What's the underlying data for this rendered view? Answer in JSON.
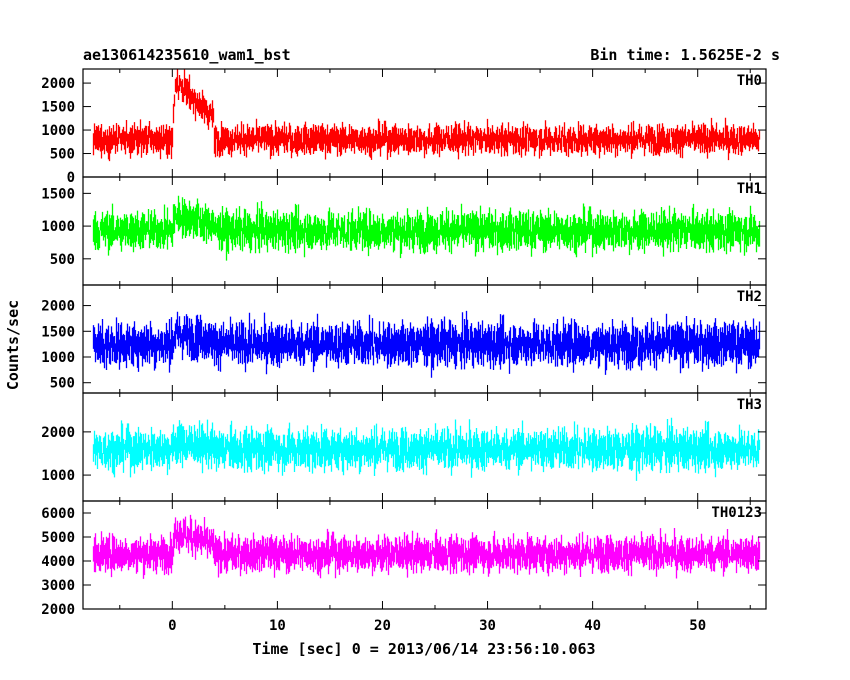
{
  "header": {
    "title": "ae130614235610_wam1_bst",
    "bin_time": "Bin time: 1.5625E-2 s"
  },
  "chart_data": {
    "type": "line",
    "xlabel": "Time [sec] 0 = 2013/06/14 23:56:10.063",
    "ylabel": "Counts/sec",
    "xlim": [
      -8.5,
      56.5
    ],
    "x_range": [
      -7.5,
      55.9
    ],
    "x_ticks": [
      0,
      10,
      20,
      30,
      40,
      50
    ],
    "grid": false,
    "panels": [
      {
        "name": "TH0",
        "color": "#ff0000",
        "ylim": [
          0,
          2300
        ],
        "yticks": [
          0,
          500,
          1000,
          1500,
          2000
        ],
        "base": 800,
        "spread": 300,
        "burst_peak": 1300,
        "burst_x": [
          0,
          4
        ]
      },
      {
        "name": "TH1",
        "color": "#00ff00",
        "ylim": [
          100,
          1750
        ],
        "yticks": [
          500,
          1000,
          1500
        ],
        "base": 930,
        "spread": 280,
        "burst_peak": 250,
        "burst_x": [
          0,
          4
        ]
      },
      {
        "name": "TH2",
        "color": "#0000ff",
        "ylim": [
          300,
          2400
        ],
        "yticks": [
          500,
          1000,
          1500,
          2000
        ],
        "base": 1250,
        "spread": 400,
        "burst_peak": 200,
        "burst_x": [
          0,
          4
        ]
      },
      {
        "name": "TH3",
        "color": "#00ffff",
        "ylim": [
          400,
          2900
        ],
        "yticks": [
          1000,
          2000
        ],
        "base": 1600,
        "spread": 450,
        "burst_peak": 150,
        "burst_x": [
          0,
          4
        ]
      },
      {
        "name": "TH0123",
        "color": "#ff00ff",
        "ylim": [
          2000,
          6500
        ],
        "yticks": [
          2000,
          3000,
          4000,
          5000,
          6000
        ],
        "base": 4300,
        "spread": 700,
        "burst_peak": 1000,
        "burst_x": [
          0,
          4
        ]
      }
    ]
  }
}
